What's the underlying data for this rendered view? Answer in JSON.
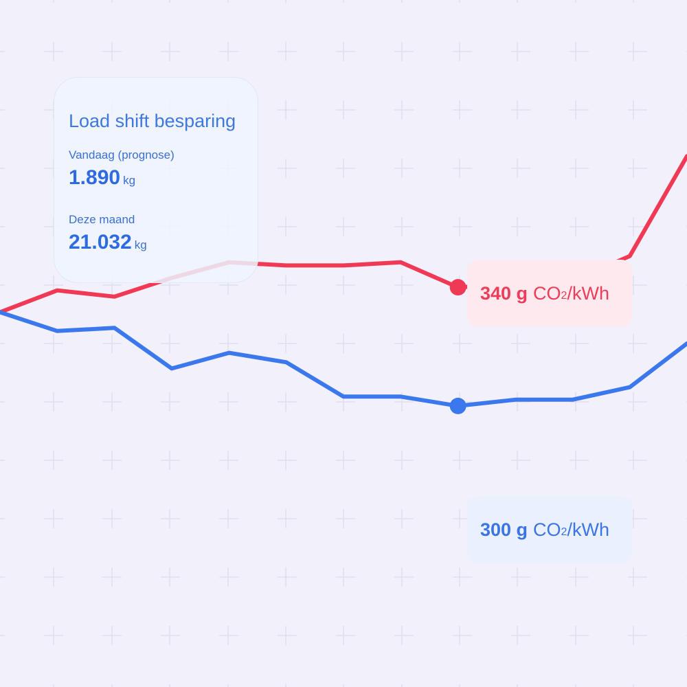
{
  "card": {
    "title": "Load shift besparing",
    "today": {
      "label": "Vandaag (prognose)",
      "value": "1.890",
      "unit": "kg"
    },
    "month": {
      "label": "Deze maand",
      "value": "21.032",
      "unit": "kg"
    }
  },
  "chart_data": {
    "type": "line",
    "title": "",
    "xlabel": "",
    "ylabel": "",
    "grid": true,
    "x": [
      0,
      1,
      2,
      3,
      4,
      5,
      6,
      7,
      8,
      9,
      10,
      11,
      12
    ],
    "ylim": [
      200,
      420
    ],
    "highlight_index": 8,
    "series": [
      {
        "color": "#f03a55",
        "values": [
          320,
          327,
          325,
          331,
          336,
          335,
          335,
          336,
          328,
          329,
          330,
          338,
          370
        ],
        "label": {
          "value": "340 g",
          "unit_prefix": "CO",
          "unit_sub": "2",
          "unit_suffix": "/kWh"
        }
      },
      {
        "color": "#3b78ee",
        "values": [
          320,
          314,
          315,
          302,
          307,
          304,
          293,
          293,
          290,
          292,
          292,
          296,
          310
        ],
        "label": {
          "value": "300 g",
          "unit_prefix": "CO",
          "unit_sub": "2",
          "unit_suffix": "/kWh"
        }
      }
    ]
  }
}
